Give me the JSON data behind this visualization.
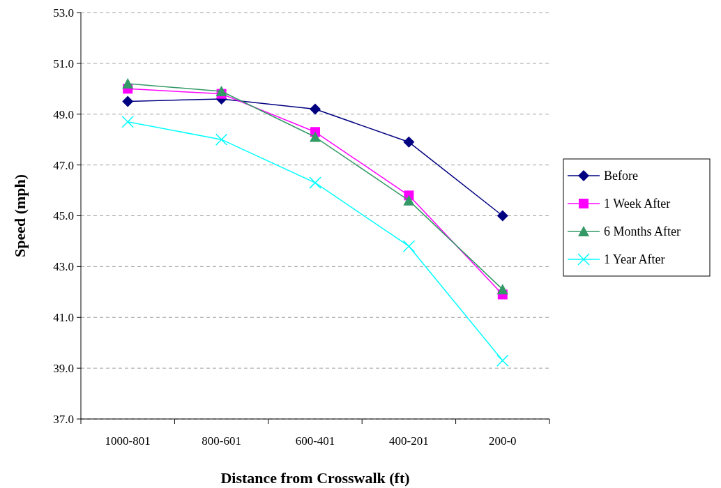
{
  "chart_data": {
    "type": "line",
    "xlabel": "Distance from Crosswalk (ft)",
    "ylabel": "Speed (mph)",
    "categories": [
      "1000-801",
      "800-601",
      "600-401",
      "400-201",
      "200-0"
    ],
    "series": [
      {
        "name": "Before",
        "color": "#000080",
        "marker": "diamond",
        "values": [
          49.5,
          49.6,
          49.2,
          47.9,
          45.0
        ]
      },
      {
        "name": "1 Week After",
        "color": "#ff00ff",
        "marker": "square",
        "values": [
          50.0,
          49.8,
          48.3,
          45.8,
          41.9
        ]
      },
      {
        "name": "6 Months After",
        "color": "#339966",
        "marker": "triangle",
        "values": [
          50.2,
          49.9,
          48.1,
          45.6,
          42.1
        ]
      },
      {
        "name": "1 Year After",
        "color": "#00ffff",
        "marker": "cross",
        "values": [
          48.7,
          48.0,
          46.3,
          43.8,
          39.3
        ]
      }
    ],
    "ylim": [
      37,
      53
    ],
    "yticks": [
      {
        "value": 37,
        "label": "37.0"
      },
      {
        "value": 39,
        "label": "39.0"
      },
      {
        "value": 41,
        "label": "41.0"
      },
      {
        "value": 43,
        "label": "43.0"
      },
      {
        "value": 45,
        "label": "45.0"
      },
      {
        "value": 47,
        "label": "47.0"
      },
      {
        "value": 49,
        "label": "49.0"
      },
      {
        "value": 51,
        "label": "51.0"
      },
      {
        "value": 53,
        "label": "53.0"
      }
    ],
    "grid": "y",
    "legend": "right",
    "line_style": "solid"
  }
}
